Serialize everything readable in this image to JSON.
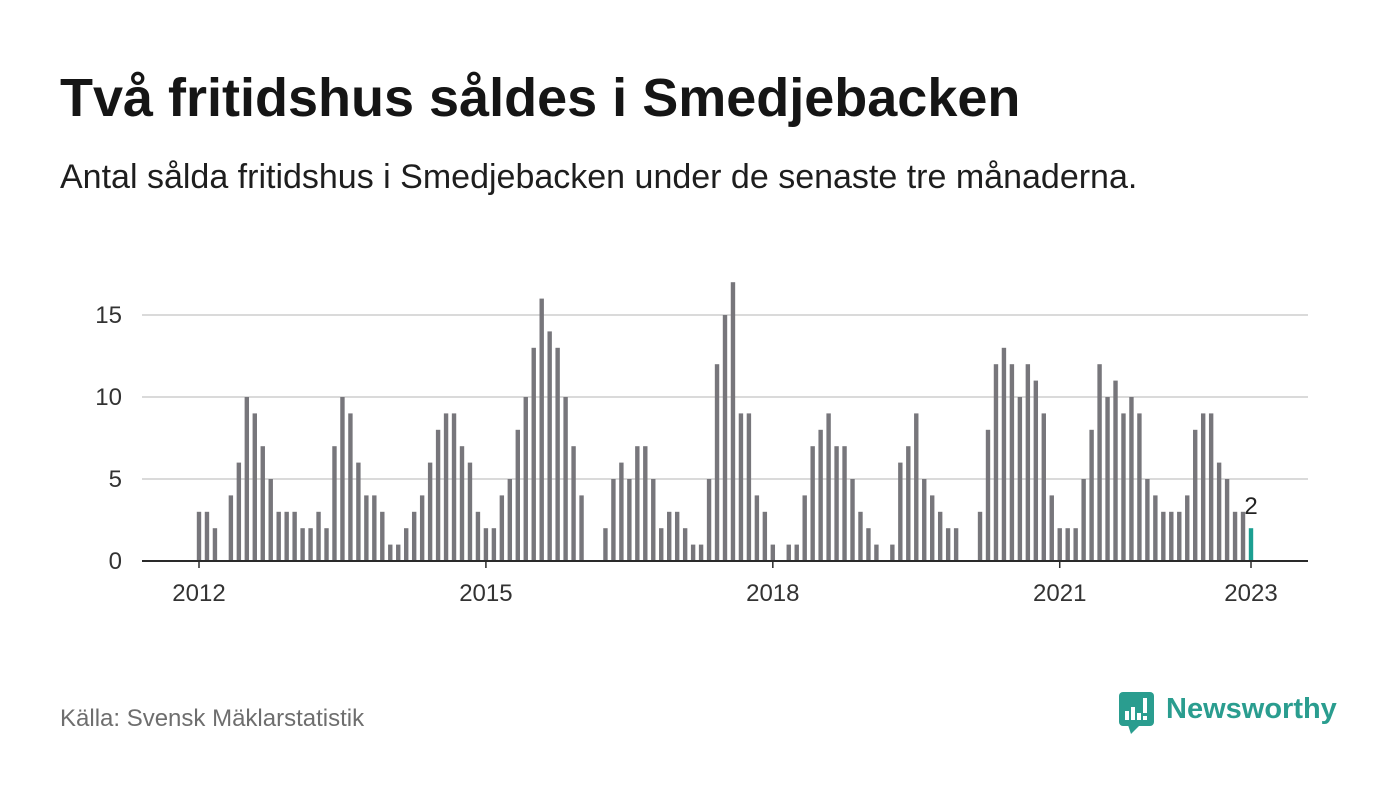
{
  "source": "Källa: Svensk Mäklarstatistik",
  "brand": {
    "name": "Newsworthy",
    "icon": "newsworthy-logo-icon",
    "color": "#2a9d8f"
  },
  "chart_data": {
    "type": "bar",
    "title": "Två fritidshus såldes i Smedjebacken",
    "subtitle": "Antal sålda fritidshus i Smedjebacken under de senaste tre månaderna.",
    "x": [
      "2012-01",
      "2012-02",
      "2012-03",
      "2012-04",
      "2012-05",
      "2012-06",
      "2012-07",
      "2012-08",
      "2012-09",
      "2012-10",
      "2012-11",
      "2012-12",
      "2013-01",
      "2013-02",
      "2013-03",
      "2013-04",
      "2013-05",
      "2013-06",
      "2013-07",
      "2013-08",
      "2013-09",
      "2013-10",
      "2013-11",
      "2013-12",
      "2014-01",
      "2014-02",
      "2014-03",
      "2014-04",
      "2014-05",
      "2014-06",
      "2014-07",
      "2014-08",
      "2014-09",
      "2014-10",
      "2014-11",
      "2014-12",
      "2015-01",
      "2015-02",
      "2015-03",
      "2015-04",
      "2015-05",
      "2015-06",
      "2015-07",
      "2015-08",
      "2015-09",
      "2015-10",
      "2015-11",
      "2015-12",
      "2016-01",
      "2016-02",
      "2016-03",
      "2016-04",
      "2016-05",
      "2016-06",
      "2016-07",
      "2016-08",
      "2016-09",
      "2016-10",
      "2016-11",
      "2016-12",
      "2017-01",
      "2017-02",
      "2017-03",
      "2017-04",
      "2017-05",
      "2017-06",
      "2017-07",
      "2017-08",
      "2017-09",
      "2017-10",
      "2017-11",
      "2017-12",
      "2018-01",
      "2018-02",
      "2018-03",
      "2018-04",
      "2018-05",
      "2018-06",
      "2018-07",
      "2018-08",
      "2018-09",
      "2018-10",
      "2018-11",
      "2018-12",
      "2019-01",
      "2019-02",
      "2019-03",
      "2019-04",
      "2019-05",
      "2019-06",
      "2019-07",
      "2019-08",
      "2019-09",
      "2019-10",
      "2019-11",
      "2019-12",
      "2020-01",
      "2020-02",
      "2020-03",
      "2020-04",
      "2020-05",
      "2020-06",
      "2020-07",
      "2020-08",
      "2020-09",
      "2020-10",
      "2020-11",
      "2020-12",
      "2021-01",
      "2021-02",
      "2021-03",
      "2021-04",
      "2021-05",
      "2021-06",
      "2021-07",
      "2021-08",
      "2021-09",
      "2021-10",
      "2021-11",
      "2021-12",
      "2022-01",
      "2022-02",
      "2022-03",
      "2022-04",
      "2022-05",
      "2022-06",
      "2022-07",
      "2022-08",
      "2022-09",
      "2022-10",
      "2022-11",
      "2022-12",
      "2023-01"
    ],
    "values": [
      3,
      3,
      2,
      0,
      4,
      6,
      10,
      9,
      7,
      5,
      3,
      3,
      3,
      2,
      2,
      3,
      2,
      7,
      10,
      9,
      6,
      4,
      4,
      3,
      1,
      1,
      2,
      3,
      4,
      6,
      8,
      9,
      9,
      7,
      6,
      3,
      2,
      2,
      4,
      5,
      8,
      10,
      13,
      16,
      14,
      13,
      10,
      7,
      4,
      0,
      0,
      2,
      5,
      6,
      5,
      7,
      7,
      5,
      2,
      3,
      3,
      2,
      1,
      1,
      5,
      12,
      15,
      17,
      9,
      9,
      4,
      3,
      1,
      0,
      1,
      1,
      4,
      7,
      8,
      9,
      7,
      7,
      5,
      3,
      2,
      1,
      0,
      1,
      6,
      7,
      9,
      5,
      4,
      3,
      2,
      2,
      0,
      0,
      3,
      8,
      12,
      13,
      12,
      10,
      12,
      11,
      9,
      4,
      2,
      2,
      2,
      5,
      8,
      12,
      10,
      11,
      9,
      10,
      9,
      5,
      4,
      3,
      3,
      3,
      4,
      8,
      9,
      9,
      6,
      5,
      3,
      3,
      2
    ],
    "x_ticks": [
      "2012",
      "2015",
      "2018",
      "2021",
      "2023"
    ],
    "y_ticks": [
      0,
      5,
      10,
      15
    ],
    "ylim": [
      0,
      17
    ],
    "grid": true,
    "highlight": {
      "x": "2023-01",
      "value": 2,
      "label": "2"
    },
    "colors": {
      "bar": "#77767b",
      "highlight": "#1c9f92",
      "grid": "#dadada",
      "axis": "#2a2a2a"
    }
  }
}
